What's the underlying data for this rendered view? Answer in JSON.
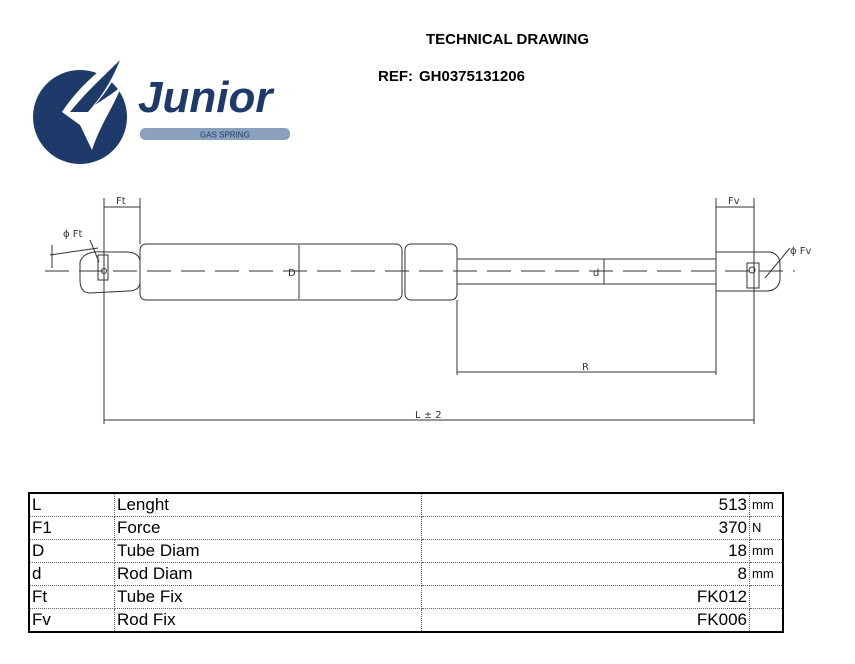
{
  "header": {
    "title": "TECHNICAL DRAWING",
    "ref_label": "REF:",
    "ref_value": "GH0375131206"
  },
  "logo": {
    "brand": "Junior",
    "tagline": "GAS SPRING",
    "color": "#1d3a6b"
  },
  "drawing": {
    "labels": {
      "ft": "Ft",
      "fv": "Fv",
      "phi_ft": "ϕ Ft",
      "phi_fv": "ϕ Fv",
      "tube_diam": "D",
      "rod_diam": "d",
      "rod_length": "R",
      "length": "L ± 2"
    }
  },
  "specs": [
    {
      "symbol": "L",
      "name": "Lenght",
      "value": "513",
      "unit": "mm"
    },
    {
      "symbol": "F1",
      "name": "Force",
      "value": "370",
      "unit": "N"
    },
    {
      "symbol": "D",
      "name": "Tube Diam",
      "value": "18",
      "unit": "mm"
    },
    {
      "symbol": "d",
      "name": "Rod Diam",
      "value": "8",
      "unit": "mm"
    },
    {
      "symbol": "Ft",
      "name": "Tube Fix",
      "value": "FK012",
      "unit": ""
    },
    {
      "symbol": "Fv",
      "name": "Rod Fix",
      "value": "FK006",
      "unit": ""
    }
  ]
}
